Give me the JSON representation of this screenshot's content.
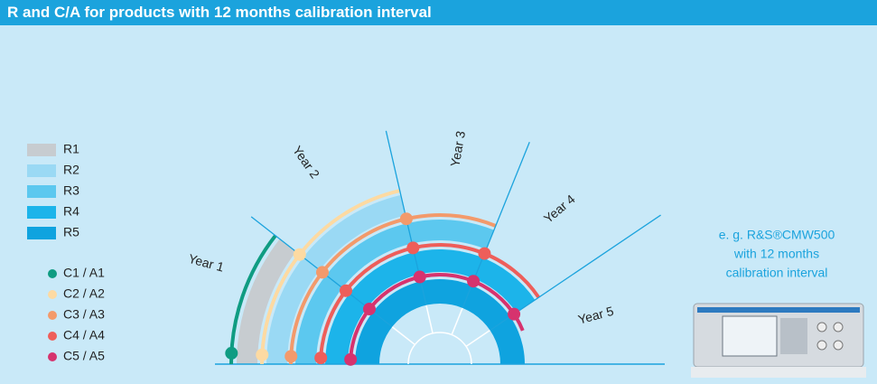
{
  "header": {
    "title": "R and C/A for products with 12 months calibration interval"
  },
  "legend": {
    "bands": [
      "R1",
      "R2",
      "R3",
      "R4",
      "R5"
    ],
    "lines": [
      "C1 / A1",
      "C2 / A2",
      "C3 / A3",
      "C4 / A4",
      "C5 / A5"
    ]
  },
  "diagram": {
    "years": [
      "Year 1",
      "Year 2",
      "Year 3",
      "Year 4",
      "Year 5"
    ]
  },
  "note": {
    "lines": [
      "e. g. R&S®CMW500",
      "with 12 months",
      "calibration interval"
    ]
  }
}
